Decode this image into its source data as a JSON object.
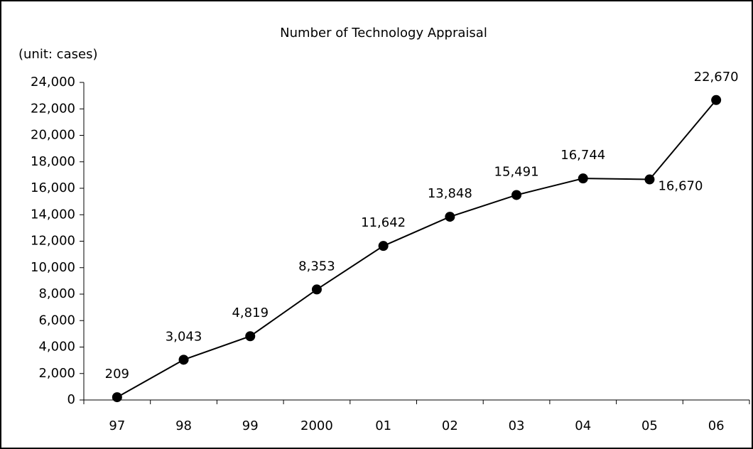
{
  "chart_data": {
    "type": "line",
    "title": "Number of Technology Appraisal",
    "y_label": "(unit: cases)",
    "categories": [
      "97",
      "98",
      "99",
      "2000",
      "01",
      "02",
      "03",
      "04",
      "05",
      "06"
    ],
    "values": [
      209,
      3043,
      4819,
      8353,
      11642,
      13848,
      15491,
      16744,
      16670,
      22670
    ],
    "value_labels": [
      "209",
      "3,043",
      "4,819",
      "8,353",
      "11,642",
      "13,848",
      "15,491",
      "16,744",
      "16,670",
      "22,670"
    ],
    "color": "#000000",
    "ylim": [
      0,
      24000
    ],
    "yticks": [
      0,
      {
        "value": 2000,
        "label": "2,000"
      },
      {
        "value": 4000,
        "label": "4,000"
      },
      {
        "value": 6000,
        "label": "6,000"
      },
      {
        "value": 8000,
        "label": "8,000"
      },
      {
        "value": 10000,
        "label": "10,000"
      },
      {
        "value": 12000,
        "label": "12,000"
      },
      {
        "value": 14000,
        "label": "14,000"
      },
      {
        "value": 16000,
        "label": "16,000"
      },
      {
        "value": 18000,
        "label": "18,000"
      },
      {
        "value": 20000,
        "label": "20,000"
      },
      {
        "value": 22000,
        "label": "22,000"
      },
      {
        "value": 24000,
        "label": "24,000"
      }
    ],
    "grid": false
  }
}
